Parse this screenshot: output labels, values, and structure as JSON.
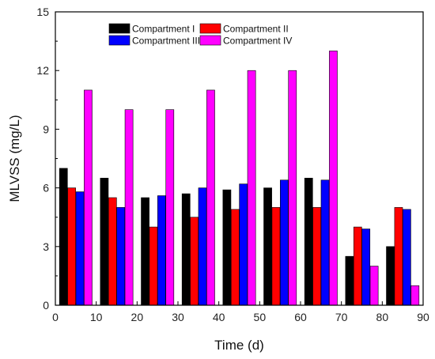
{
  "chart_data": {
    "type": "bar",
    "xlabel": "Time (d)",
    "ylabel": "MLVSS (mg/L)",
    "xlim": [
      0,
      90
    ],
    "ylim": [
      0,
      15
    ],
    "xticks": [
      0,
      10,
      20,
      30,
      40,
      50,
      60,
      70,
      80,
      90
    ],
    "yticks": [
      0,
      3,
      6,
      9,
      12,
      15
    ],
    "categories": [
      5,
      15,
      25,
      35,
      45,
      55,
      65,
      75,
      85
    ],
    "legend_position": "top-center",
    "grid": false,
    "series": [
      {
        "name": "Compartment I",
        "color": "#000000",
        "values": [
          7.0,
          6.5,
          5.5,
          5.7,
          5.9,
          6.0,
          6.5,
          2.5,
          3.0
        ]
      },
      {
        "name": "Compartment II",
        "color": "#ff0000",
        "values": [
          6.0,
          5.5,
          4.0,
          4.5,
          4.9,
          5.0,
          5.0,
          4.0,
          5.0
        ]
      },
      {
        "name": "Compartment III",
        "color": "#0000ff",
        "values": [
          5.8,
          5.0,
          5.6,
          6.0,
          6.2,
          6.4,
          6.4,
          3.9,
          4.9
        ]
      },
      {
        "name": "Compartment IV",
        "color": "#ff00ff",
        "values": [
          11.0,
          10.0,
          10.0,
          11.0,
          12.0,
          12.0,
          13.0,
          2.0,
          1.0
        ]
      }
    ]
  }
}
